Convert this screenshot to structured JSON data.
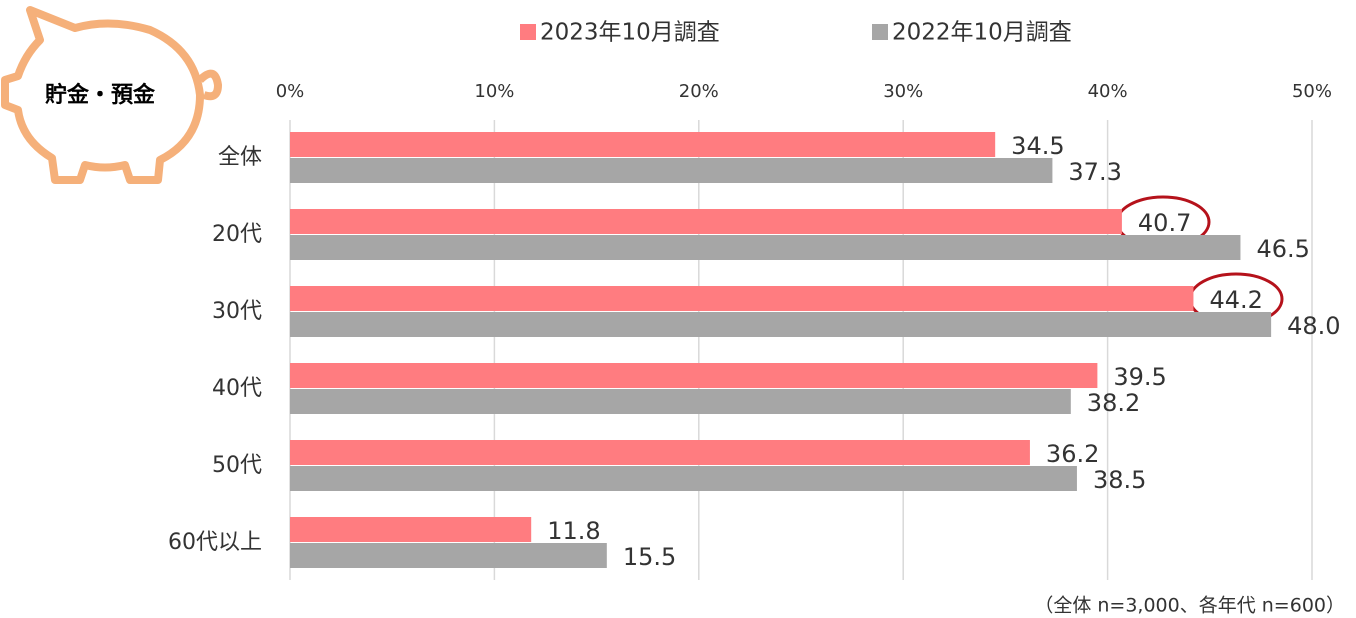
{
  "chart_data": {
    "type": "hbar",
    "badge": "貯金・預金",
    "categories": [
      "全体",
      "20代",
      "30代",
      "40代",
      "50代",
      "60代以上"
    ],
    "series": [
      {
        "name": "2023年10月調査",
        "color": "#ff7c80",
        "values": [
          34.5,
          40.7,
          44.2,
          39.5,
          36.2,
          11.8
        ],
        "value_labels": [
          "34.5",
          "40.7",
          "44.2",
          "39.5",
          "36.2",
          "11.8"
        ]
      },
      {
        "name": "2022年10月調査",
        "color": "#a6a6a6",
        "values": [
          37.3,
          46.5,
          48.0,
          38.2,
          38.5,
          15.5
        ],
        "value_labels": [
          "37.3",
          "46.5",
          "48.0",
          "38.2",
          "38.5",
          "15.5"
        ]
      }
    ],
    "xlim": [
      0,
      50
    ],
    "xticks": [
      {
        "value": 0,
        "label": "0%"
      },
      {
        "value": 10,
        "label": "10%"
      },
      {
        "value": 20,
        "label": "20%"
      },
      {
        "value": 30,
        "label": "30%"
      },
      {
        "value": 40,
        "label": "40%"
      },
      {
        "value": 50,
        "label": "50%"
      }
    ],
    "grid": true,
    "legend": "top",
    "note": "（全体 n=3,000、各年代 n=600）"
  }
}
